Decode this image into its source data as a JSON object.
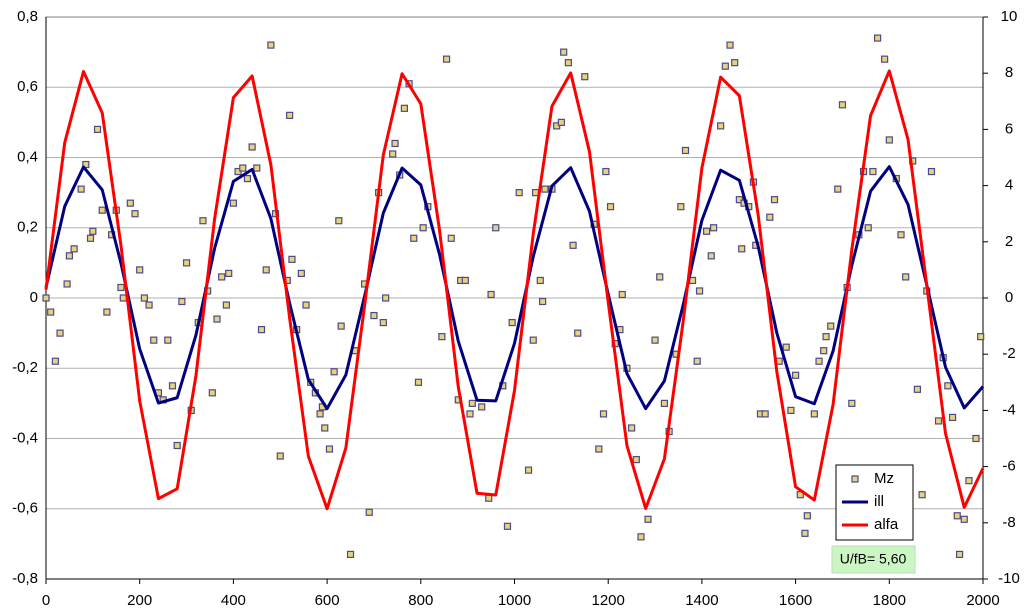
{
  "chart_data": {
    "type": "combo",
    "annotation": "U/fB= 5,60",
    "legend": "lower right",
    "grid": true,
    "xlim": [
      0,
      2000
    ],
    "xticks": [
      0,
      200,
      400,
      600,
      800,
      1000,
      1200,
      1400,
      1600,
      1800,
      2000
    ],
    "ylim": [
      -0.8,
      0.8
    ],
    "yticks": [
      {
        "value": -0.8,
        "label": "-0,8"
      },
      {
        "value": -0.6,
        "label": "-0,6"
      },
      {
        "value": -0.4,
        "label": "-0,4"
      },
      {
        "value": -0.2,
        "label": "-0,2"
      },
      0,
      {
        "value": 0.2,
        "label": "0,2"
      },
      {
        "value": 0.4,
        "label": "0,4"
      },
      {
        "value": 0.6,
        "label": "0,6"
      },
      {
        "value": 0.8,
        "label": "0,8"
      }
    ],
    "y2lim": [
      -10,
      10
    ],
    "y2ticks": [
      -10,
      -8,
      -6,
      -4,
      -2,
      0,
      2,
      4,
      6,
      8,
      10
    ],
    "x": [
      0,
      40,
      80,
      120,
      160,
      200,
      240,
      280,
      320,
      360,
      400,
      440,
      480,
      520,
      560,
      600,
      640,
      680,
      720,
      760,
      800,
      840,
      880,
      920,
      960,
      1000,
      1040,
      1080,
      1120,
      1160,
      1200,
      1240,
      1280,
      1320,
      1360,
      1400,
      1440,
      1480,
      1520,
      1560,
      1600,
      1640,
      1680,
      1720,
      1760,
      1800,
      1840,
      1880,
      1920,
      1960,
      2000
    ],
    "series": [
      {
        "name": "Mz",
        "type": "scatter",
        "color": "#e8d27a",
        "x": [
          0,
          10,
          20,
          30,
          45,
          50,
          60,
          75,
          85,
          95,
          100,
          110,
          120,
          130,
          140,
          150,
          160,
          165,
          180,
          190,
          200,
          210,
          220,
          230,
          240,
          250,
          260,
          270,
          280,
          290,
          300,
          310,
          325,
          335,
          345,
          355,
          365,
          375,
          385,
          390,
          400,
          410,
          420,
          430,
          440,
          450,
          460,
          470,
          480,
          490,
          500,
          515,
          520,
          525,
          535,
          545,
          555,
          565,
          575,
          585,
          590,
          595,
          605,
          615,
          625,
          630,
          650,
          660,
          680,
          690,
          700,
          710,
          720,
          725,
          740,
          745,
          755,
          765,
          775,
          785,
          795,
          805,
          815,
          845,
          855,
          865,
          880,
          885,
          895,
          905,
          910,
          930,
          945,
          950,
          960,
          975,
          985,
          995,
          1010,
          1030,
          1040,
          1045,
          1055,
          1060,
          1065,
          1080,
          1090,
          1100,
          1105,
          1115,
          1125,
          1135,
          1150,
          1170,
          1180,
          1190,
          1195,
          1205,
          1215,
          1225,
          1230,
          1240,
          1250,
          1260,
          1270,
          1285,
          1300,
          1310,
          1320,
          1330,
          1345,
          1355,
          1365,
          1380,
          1390,
          1395,
          1410,
          1420,
          1425,
          1440,
          1450,
          1460,
          1470,
          1480,
          1485,
          1490,
          1500,
          1510,
          1515,
          1525,
          1535,
          1545,
          1555,
          1565,
          1580,
          1590,
          1600,
          1610,
          1620,
          1625,
          1640,
          1650,
          1660,
          1665,
          1675,
          1690,
          1700,
          1710,
          1720,
          1735,
          1745,
          1755,
          1765,
          1775,
          1790,
          1800,
          1815,
          1825,
          1835,
          1850,
          1860,
          1870,
          1880,
          1890,
          1905,
          1915,
          1925,
          1935,
          1945,
          1950,
          1960,
          1970,
          1985,
          1995
        ],
        "values": [
          0,
          -0.04,
          -0.18,
          -0.1,
          0.04,
          0.12,
          0.14,
          0.31,
          0.38,
          0.17,
          0.19,
          0.48,
          0.25,
          -0.04,
          0.18,
          0.25,
          0.03,
          0,
          0.27,
          0.24,
          0.08,
          0,
          -0.02,
          -0.12,
          -0.27,
          -0.29,
          -0.12,
          -0.25,
          -0.42,
          -0.01,
          0.1,
          -0.32,
          -0.07,
          0.22,
          0.02,
          -0.27,
          -0.06,
          0.06,
          -0.02,
          0.07,
          0.27,
          0.36,
          0.37,
          0.34,
          0.43,
          0.37,
          -0.09,
          0.08,
          0.72,
          0.24,
          -0.45,
          0.05,
          0.52,
          0.11,
          -0.09,
          0.07,
          -0.02,
          -0.24,
          -0.27,
          -0.33,
          -0.31,
          -0.37,
          -0.43,
          -0.21,
          0.22,
          -0.08,
          -0.73,
          -0.15,
          0.04,
          -0.61,
          -0.05,
          0.3,
          -0.07,
          0,
          0.41,
          0.44,
          0.35,
          0.54,
          0.61,
          0.17,
          -0.24,
          0.2,
          0.26,
          -0.11,
          0.68,
          0.17,
          -0.29,
          0.05,
          0.05,
          -0.33,
          -0.3,
          -0.31,
          -0.57,
          0.01,
          0.2,
          -0.25,
          -0.65,
          -0.07,
          0.3,
          -0.49,
          -0.12,
          0.3,
          0.05,
          -0.01,
          0.31,
          0.31,
          0.49,
          0.5,
          0.7,
          0.67,
          0.15,
          -0.1,
          0.63,
          0.21,
          -0.43,
          -0.33,
          0.36,
          0.26,
          -0.13,
          -0.09,
          0.01,
          -0.2,
          -0.37,
          -0.46,
          -0.68,
          -0.63,
          -0.12,
          0.06,
          -0.3,
          -0.38,
          -0.16,
          0.26,
          0.42,
          0.05,
          -0.18,
          0.02,
          0.19,
          0.12,
          0.2,
          0.49,
          0.66,
          0.72,
          0.67,
          0.28,
          0.14,
          0.27,
          0.26,
          0.33,
          0.15,
          -0.33,
          -0.33,
          0.23,
          0.28,
          -0.18,
          -0.14,
          -0.32,
          -0.22,
          -0.56,
          -0.67,
          -0.62,
          -0.33,
          -0.18,
          -0.15,
          -0.11,
          -0.08,
          0.31,
          0.55,
          0.03,
          -0.3,
          0.18,
          0.36,
          0.2,
          0.36,
          0.74,
          0.68,
          0.45,
          0.34,
          0.18,
          0.06,
          0.39,
          -0.26,
          -0.56,
          0.02,
          0.36,
          -0.35,
          -0.17,
          -0.25,
          -0.34,
          -0.62,
          -0.73,
          -0.63,
          -0.52,
          -0.4,
          -0.11
        ]
      },
      {
        "name": "ill",
        "type": "line",
        "color": "#000080",
        "values": [
          0.03,
          0.261,
          0.373,
          0.308,
          0.099,
          -0.145,
          -0.299,
          -0.284,
          -0.106,
          0.142,
          0.332,
          0.366,
          0.226,
          -0.015,
          -0.232,
          -0.315,
          -0.219,
          0.005,
          0.242,
          0.37,
          0.322,
          0.124,
          -0.123,
          -0.291,
          -0.293,
          -0.129,
          0.118,
          0.319,
          0.371,
          0.247,
          0.011,
          -0.215,
          -0.315,
          -0.236,
          -0.02,
          0.221,
          0.364,
          0.335,
          0.148,
          -0.1,
          -0.281,
          -0.301,
          -0.151,
          0.093,
          0.304,
          0.374,
          0.266,
          0.037,
          -0.197,
          -0.313,
          -0.252
        ]
      },
      {
        "name": "alfa",
        "type": "line",
        "color": "#ff0000",
        "axis": "y2",
        "values": [
          0.3,
          5.53,
          8.06,
          6.59,
          1.87,
          -3.66,
          -7.14,
          -6.79,
          -2.77,
          2.83,
          7.13,
          7.9,
          4.74,
          -0.71,
          -5.63,
          -7.5,
          -5.34,
          -0.27,
          5.09,
          7.98,
          6.91,
          2.42,
          -3.16,
          -6.95,
          -7.01,
          -3.29,
          2.28,
          6.83,
          8.01,
          5.21,
          -0.14,
          -5.25,
          -7.49,
          -5.72,
          -0.84,
          4.63,
          7.86,
          7.2,
          2.97,
          -2.63,
          -6.72,
          -7.19,
          -3.79,
          1.72,
          6.49,
          8.08,
          5.64,
          0.45,
          -4.82,
          -7.45,
          -6.06
        ]
      }
    ]
  }
}
